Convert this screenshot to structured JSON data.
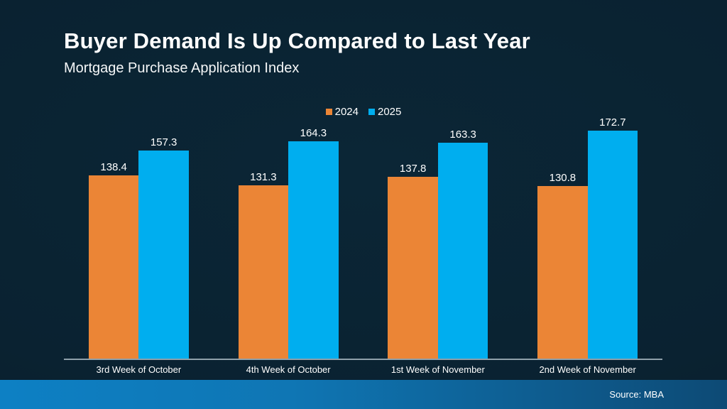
{
  "slide": {
    "title": "Buyer Demand Is Up Compared to Last Year",
    "subtitle": "Mortgage Purchase Application Index",
    "source": "Source: MBA"
  },
  "colors": {
    "background": "#0a2332",
    "bar_2024": "#eb8536",
    "bar_2025": "#00aeef",
    "axis_line": "#8fa0aa",
    "footer_gradient_left": "#0d80c4",
    "footer_gradient_right": "#0d4a75",
    "text": "#ffffff"
  },
  "chart_data": {
    "type": "bar",
    "title": "Buyer Demand Is Up Compared to Last Year",
    "subtitle": "Mortgage Purchase Application Index",
    "categories": [
      "3rd Week of October",
      "4th Week of October",
      "1st Week of November",
      "2nd Week of November"
    ],
    "series": [
      {
        "name": "2024",
        "color": "#eb8536",
        "values": [
          138.4,
          131.3,
          137.8,
          130.8
        ]
      },
      {
        "name": "2025",
        "color": "#00aeef",
        "values": [
          157.3,
          164.3,
          163.3,
          172.7
        ]
      }
    ],
    "ylim": [
      0,
      180
    ],
    "xlabel": "",
    "ylabel": "",
    "grid": false,
    "data_labels": true,
    "legend_position": "top-center",
    "source": "Source: MBA"
  }
}
